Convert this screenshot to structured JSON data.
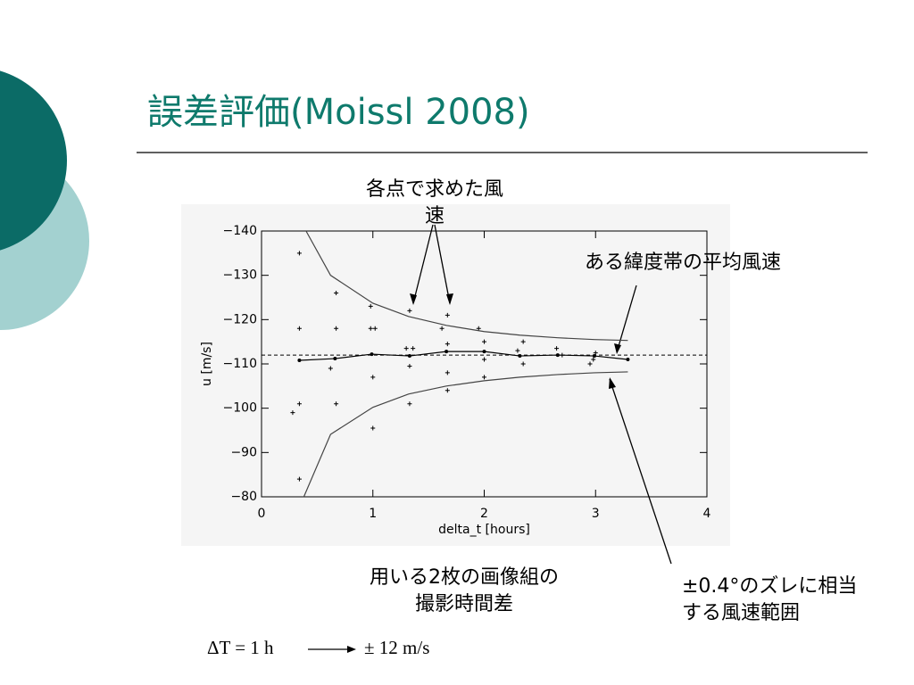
{
  "title": "誤差評価(Moissl 2008)",
  "chart_data": {
    "type": "scatter",
    "xlabel": "delta_t [hours]",
    "ylabel": "u [m/s]",
    "xlim": [
      0,
      4
    ],
    "xticks": [
      0,
      1,
      2,
      3,
      4
    ],
    "ylim": [
      -80,
      -140
    ],
    "yticks": [
      {
        "value": -140,
        "label": "−140"
      },
      {
        "value": -130,
        "label": "−130"
      },
      {
        "value": -120,
        "label": "−120"
      },
      {
        "value": -110,
        "label": "−110"
      },
      {
        "value": -100,
        "label": "−100"
      },
      {
        "value": -90,
        "label": "−90"
      },
      {
        "value": -80,
        "label": "−80"
      }
    ],
    "reference_line": {
      "value": -112,
      "dashed": true,
      "color": "#000000"
    },
    "series": [
      {
        "color": "#000000",
        "marker": "plus",
        "x": [
          0.34,
          0.34,
          0.34,
          0.28,
          0.34,
          0.67,
          0.67,
          0.62,
          0.67,
          0.98,
          0.98,
          1.02,
          1.0,
          1.0,
          1.33,
          1.3,
          1.36,
          1.33,
          1.33,
          1.67,
          1.62,
          1.67,
          1.67,
          1.67,
          1.95,
          2.0,
          2.0,
          2.0,
          2.35,
          2.3,
          2.35,
          2.65,
          2.7,
          2.95,
          2.98,
          3.0
        ],
        "values": [
          -135,
          -118,
          -101,
          -99,
          -84,
          -126,
          -118,
          -109,
          -101,
          -123,
          -118,
          -118,
          -107,
          -95.5,
          -122,
          -113.5,
          -113.5,
          -109.5,
          -101,
          -121,
          -118,
          -114.5,
          -108,
          -104,
          -118,
          -115,
          -111,
          -107,
          -115,
          -113,
          -110,
          -113.5,
          -112,
          -110,
          -111,
          -112.5
        ]
      },
      {
        "color": "#000000",
        "line": true,
        "marker": "dot",
        "x": [
          0.34,
          0.66,
          0.99,
          1.33,
          1.66,
          2.0,
          2.32,
          2.66,
          2.99,
          3.29
        ],
        "values": [
          -110.8,
          -111.2,
          -112.2,
          -111.8,
          -112.8,
          -112.8,
          -111.8,
          -112.0,
          -111.8,
          -111.0
        ]
      },
      {
        "color": "#444444",
        "line": true,
        "x": [
          0.4,
          0.62,
          1.0,
          1.32,
          1.66,
          2.0,
          2.32,
          2.66,
          2.99,
          3.29
        ],
        "values": [
          -140,
          -130,
          -123.7,
          -120.7,
          -118.7,
          -117.3,
          -116.5,
          -115.9,
          -115.5,
          -115.3
        ]
      },
      {
        "color": "#444444",
        "line": true,
        "x": [
          0.38,
          0.62,
          1.0,
          1.32,
          1.66,
          2.0,
          2.32,
          2.66,
          2.99,
          3.29
        ],
        "values": [
          -80,
          -94.1,
          -100.2,
          -103.2,
          -105,
          -106.2,
          -107,
          -107.6,
          -108,
          -108.2
        ]
      }
    ]
  },
  "annotations": [
    "各点で求めた風速",
    "ある緯度帯の平均風速",
    "用いる2枚の画像組の撮影時間差",
    "±0.4°のズレに相当する風速範囲"
  ],
  "footer": {
    "left": "ΔT = 1 h",
    "right": "± 12 m/s"
  }
}
